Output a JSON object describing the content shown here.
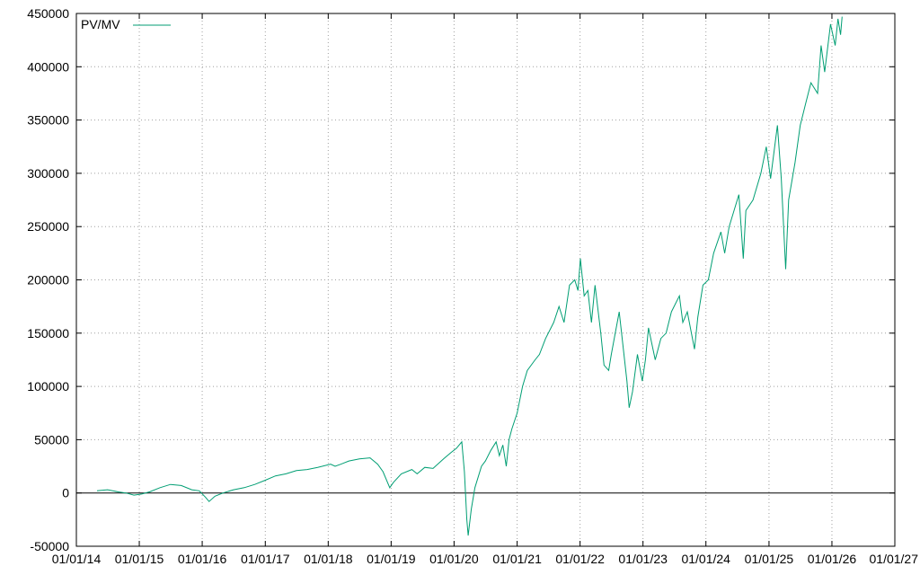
{
  "chart_data": {
    "type": "line",
    "title": "",
    "xlabel": "",
    "ylabel": "",
    "ylim": [
      -50000,
      450000
    ],
    "xlim": [
      "2014-01-01",
      "2027-01-01"
    ],
    "y_ticks": [
      -50000,
      0,
      50000,
      100000,
      150000,
      200000,
      250000,
      300000,
      350000,
      400000,
      450000
    ],
    "x_ticks": [
      "2014-01-01",
      "2015-01-01",
      "2016-01-01",
      "2017-01-01",
      "2018-01-01",
      "2019-01-01",
      "2020-01-01",
      "2021-01-01",
      "2022-01-01",
      "2023-01-01",
      "2024-01-01",
      "2025-01-01",
      "2026-01-01",
      "2027-01-01"
    ],
    "x_tick_labels": [
      "01/01/14",
      "01/01/15",
      "01/01/16",
      "01/01/17",
      "01/01/18",
      "01/01/19",
      "01/01/20",
      "01/01/21",
      "01/01/22",
      "01/01/23",
      "01/01/24",
      "01/01/25",
      "01/01/26",
      "01/01/27"
    ],
    "grid": true,
    "legend": "top-left",
    "zero_line": true,
    "series": [
      {
        "name": "PV/MV",
        "color": "#009e73",
        "points": [
          [
            "2014-05-01",
            2000
          ],
          [
            "2014-07-01",
            3000
          ],
          [
            "2014-09-01",
            1000
          ],
          [
            "2014-10-15",
            0
          ],
          [
            "2014-12-01",
            -2000
          ],
          [
            "2015-01-15",
            -1000
          ],
          [
            "2015-03-01",
            1000
          ],
          [
            "2015-05-01",
            5000
          ],
          [
            "2015-07-01",
            8000
          ],
          [
            "2015-09-01",
            7000
          ],
          [
            "2015-11-01",
            3000
          ],
          [
            "2015-12-15",
            2000
          ],
          [
            "2016-01-20",
            -4000
          ],
          [
            "2016-02-10",
            -8000
          ],
          [
            "2016-03-15",
            -3000
          ],
          [
            "2016-05-01",
            0
          ],
          [
            "2016-07-01",
            3000
          ],
          [
            "2016-09-01",
            5000
          ],
          [
            "2016-11-01",
            8000
          ],
          [
            "2017-01-01",
            12000
          ],
          [
            "2017-03-01",
            16000
          ],
          [
            "2017-05-01",
            18000
          ],
          [
            "2017-07-01",
            21000
          ],
          [
            "2017-09-01",
            22000
          ],
          [
            "2017-11-01",
            24000
          ],
          [
            "2018-01-15",
            27000
          ],
          [
            "2018-02-10",
            25000
          ],
          [
            "2018-03-15",
            27000
          ],
          [
            "2018-05-01",
            30000
          ],
          [
            "2018-07-01",
            32000
          ],
          [
            "2018-09-01",
            33000
          ],
          [
            "2018-10-15",
            27000
          ],
          [
            "2018-11-15",
            20000
          ],
          [
            "2018-12-24",
            5000
          ],
          [
            "2019-01-15",
            10000
          ],
          [
            "2019-03-01",
            18000
          ],
          [
            "2019-05-01",
            22000
          ],
          [
            "2019-06-01",
            18000
          ],
          [
            "2019-07-15",
            24000
          ],
          [
            "2019-09-01",
            23000
          ],
          [
            "2019-11-01",
            32000
          ],
          [
            "2019-12-15",
            38000
          ],
          [
            "2020-01-15",
            42000
          ],
          [
            "2020-02-15",
            48000
          ],
          [
            "2020-03-01",
            20000
          ],
          [
            "2020-03-15",
            -25000
          ],
          [
            "2020-03-23",
            -40000
          ],
          [
            "2020-04-10",
            -15000
          ],
          [
            "2020-05-01",
            5000
          ],
          [
            "2020-06-08",
            25000
          ],
          [
            "2020-07-01",
            30000
          ],
          [
            "2020-08-01",
            40000
          ],
          [
            "2020-09-01",
            48000
          ],
          [
            "2020-09-20",
            35000
          ],
          [
            "2020-10-10",
            45000
          ],
          [
            "2020-10-30",
            25000
          ],
          [
            "2020-11-15",
            50000
          ],
          [
            "2020-12-01",
            60000
          ],
          [
            "2021-01-01",
            75000
          ],
          [
            "2021-02-01",
            100000
          ],
          [
            "2021-03-01",
            115000
          ],
          [
            "2021-04-15",
            125000
          ],
          [
            "2021-05-10",
            130000
          ],
          [
            "2021-06-15",
            145000
          ],
          [
            "2021-08-01",
            160000
          ],
          [
            "2021-09-01",
            175000
          ],
          [
            "2021-09-30",
            160000
          ],
          [
            "2021-11-01",
            195000
          ],
          [
            "2021-12-01",
            200000
          ],
          [
            "2021-12-20",
            190000
          ],
          [
            "2022-01-03",
            220000
          ],
          [
            "2022-01-25",
            185000
          ],
          [
            "2022-02-15",
            190000
          ],
          [
            "2022-03-08",
            160000
          ],
          [
            "2022-03-29",
            195000
          ],
          [
            "2022-05-01",
            150000
          ],
          [
            "2022-05-20",
            120000
          ],
          [
            "2022-06-16",
            115000
          ],
          [
            "2022-07-01",
            130000
          ],
          [
            "2022-08-16",
            170000
          ],
          [
            "2022-09-30",
            105000
          ],
          [
            "2022-10-13",
            80000
          ],
          [
            "2022-11-01",
            95000
          ],
          [
            "2022-11-30",
            130000
          ],
          [
            "2022-12-28",
            105000
          ],
          [
            "2023-01-15",
            125000
          ],
          [
            "2023-02-02",
            155000
          ],
          [
            "2023-03-13",
            125000
          ],
          [
            "2023-04-15",
            145000
          ],
          [
            "2023-05-15",
            150000
          ],
          [
            "2023-06-15",
            170000
          ],
          [
            "2023-07-31",
            185000
          ],
          [
            "2023-08-20",
            160000
          ],
          [
            "2023-09-15",
            170000
          ],
          [
            "2023-10-27",
            135000
          ],
          [
            "2023-11-15",
            165000
          ],
          [
            "2023-12-15",
            195000
          ],
          [
            "2024-01-15",
            200000
          ],
          [
            "2024-02-15",
            225000
          ],
          [
            "2024-03-28",
            245000
          ],
          [
            "2024-04-19",
            225000
          ],
          [
            "2024-05-15",
            250000
          ],
          [
            "2024-07-10",
            280000
          ],
          [
            "2024-08-05",
            220000
          ],
          [
            "2024-08-20",
            265000
          ],
          [
            "2024-09-30",
            275000
          ],
          [
            "2024-11-15",
            300000
          ],
          [
            "2024-12-16",
            325000
          ],
          [
            "2025-01-10",
            295000
          ],
          [
            "2025-02-19",
            345000
          ],
          [
            "2025-03-13",
            295000
          ],
          [
            "2025-04-08",
            210000
          ],
          [
            "2025-04-25",
            275000
          ],
          [
            "2025-06-01",
            310000
          ],
          [
            "2025-07-01",
            345000
          ],
          [
            "2025-08-01",
            365000
          ],
          [
            "2025-09-01",
            385000
          ],
          [
            "2025-10-10",
            375000
          ],
          [
            "2025-10-30",
            420000
          ],
          [
            "2025-11-20",
            395000
          ],
          [
            "2025-12-24",
            440000
          ],
          [
            "2026-01-20",
            420000
          ],
          [
            "2026-02-05",
            445000
          ],
          [
            "2026-02-20",
            430000
          ],
          [
            "2026-03-01",
            447000
          ]
        ]
      }
    ]
  }
}
